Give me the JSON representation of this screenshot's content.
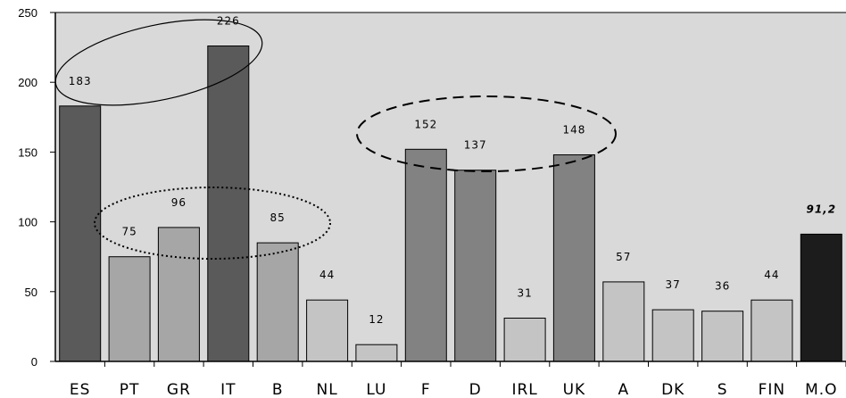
{
  "chart_data": {
    "type": "bar",
    "title": "",
    "xlabel": "",
    "ylabel": "",
    "ylim": [
      0,
      250
    ],
    "yticks": [
      0,
      50,
      100,
      150,
      200,
      250
    ],
    "grid": false,
    "categories": [
      "ES",
      "PT",
      "GR",
      "IT",
      "B",
      "NL",
      "LU",
      "F",
      "D",
      "IRL",
      "UK",
      "A",
      "DK",
      "S",
      "FIN",
      "M.O"
    ],
    "values": [
      183,
      75,
      96,
      226,
      85,
      44,
      12,
      152,
      137,
      31,
      148,
      57,
      37,
      36,
      44,
      91.2
    ],
    "data_labels": [
      "183",
      "75",
      "96",
      "226",
      "85",
      "44",
      "12",
      "152",
      "137",
      "31",
      "148",
      "57",
      "37",
      "36",
      "44",
      "91,2"
    ],
    "bar_colors": [
      "#5a5a5a",
      "#a6a6a6",
      "#a6a6a6",
      "#5a5a5a",
      "#a6a6a6",
      "#c4c4c4",
      "#c4c4c4",
      "#828282",
      "#828282",
      "#c4c4c4",
      "#828282",
      "#c4c4c4",
      "#c4c4c4",
      "#c4c4c4",
      "#c4c4c4",
      "#1c1c1c"
    ],
    "colors": {
      "plot_background": "#d9d9d9",
      "axis": "#000000",
      "bar_outline": "#000000"
    },
    "annotations": [
      {
        "shape": "ellipse",
        "style": "solid",
        "groups": [
          "ES",
          "IT"
        ]
      },
      {
        "shape": "ellipse",
        "style": "dotted",
        "groups": [
          "PT",
          "GR",
          "B"
        ]
      },
      {
        "shape": "ellipse",
        "style": "dashed",
        "groups": [
          "F",
          "D",
          "UK"
        ]
      }
    ]
  }
}
